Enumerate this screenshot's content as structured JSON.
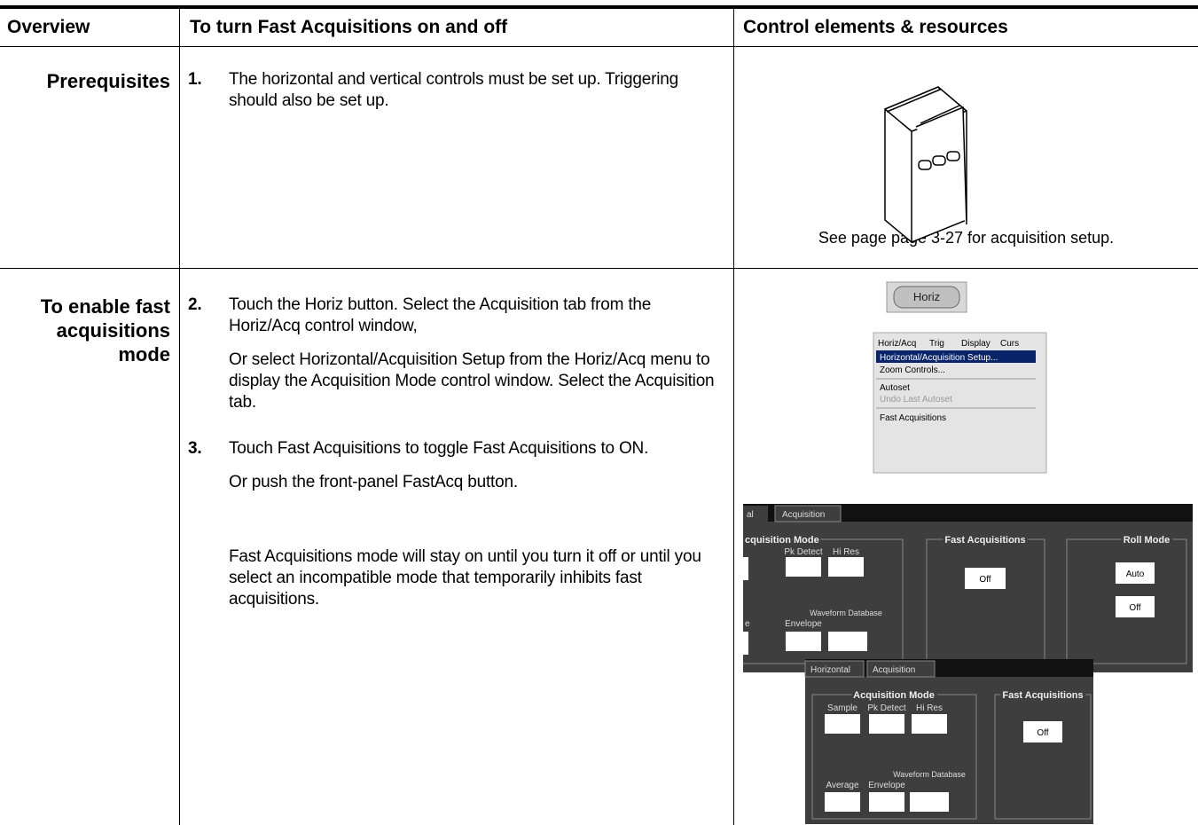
{
  "header": {
    "overview": "Overview",
    "procedure": "To turn Fast Acquisitions on and off",
    "resources": "Control elements & resources"
  },
  "rows": [
    {
      "overview": "Prerequisites",
      "steps": [
        {
          "number": "1.",
          "paragraphs": [
            "The horizontal and vertical controls must be set up. Triggering should also be set up."
          ]
        }
      ],
      "caption": "See page page 3-27 for acquisition setup."
    },
    {
      "overview": "To enable fast acquisitions mode",
      "steps": [
        {
          "number": "2.",
          "paragraphs": [
            "Touch the Horiz button. Select the Acquisition tab from the Horiz/Acq control window,",
            "Or select Horizontal/Acquisition Setup from the Horiz/Acq menu to display the Acquisition Mode control window. Select the Acquisition tab."
          ]
        },
        {
          "number": "3.",
          "paragraphs": [
            "Touch Fast Acquisitions to toggle Fast Acquisitions to ON.",
            "Or push the front-panel FastAcq button.",
            "Fast Acquisitions mode will stay on until you turn it off or until you select an incompatible mode that temporarily inhibits fast acquisitions."
          ]
        }
      ]
    }
  ],
  "horiz_button": "Horiz",
  "menu": {
    "bar": [
      "Horiz/Acq",
      "Trig",
      "Display",
      "Curs"
    ],
    "items": [
      "Horizontal/Acquisition Setup...",
      "Zoom Controls...",
      "Autoset",
      "Undo Last Autoset",
      "Fast Acquisitions"
    ]
  },
  "panel_cropped": {
    "tabs": [
      "al",
      "Acquisition"
    ],
    "mode_group": "cquisition Mode",
    "buttons": [
      "Pk Detect",
      "Hi Res",
      "e",
      "Envelope",
      "Waveform Database"
    ],
    "fast_group": "Fast Acquisitions",
    "fast_button": "Off",
    "roll_group": "Roll Mode",
    "roll_buttons": [
      "Auto",
      "Off"
    ]
  },
  "panel_full": {
    "tabs": [
      "Horizontal",
      "Acquisition"
    ],
    "mode_group": "Acquisition Mode",
    "buttons": [
      "Sample",
      "Pk Detect",
      "Hi Res",
      "Average",
      "Envelope",
      "Waveform Database"
    ],
    "fast_group": "Fast Acquisitions",
    "fast_button": "Off"
  }
}
